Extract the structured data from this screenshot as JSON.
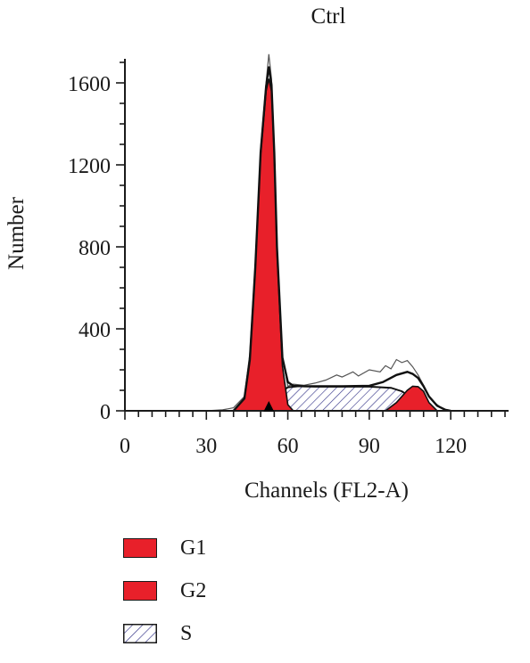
{
  "chart_data": {
    "type": "area",
    "title": "Ctrl",
    "xlabel": "Channels (FL2-A)",
    "ylabel": "Number",
    "xlim": [
      0,
      140
    ],
    "ylim": [
      0,
      1700
    ],
    "xticks": [
      0,
      30,
      60,
      90,
      120
    ],
    "yticks": [
      0,
      400,
      800,
      1200,
      1600
    ],
    "grid": false,
    "legend_position": "bottom-left",
    "marker_channel": 53,
    "colors": {
      "phase_fill": "#e8202a",
      "s_hatch": "#3a3a8c",
      "outline": "#111111",
      "raw": "#555555"
    },
    "series": [
      {
        "name": "G1",
        "style": "solid",
        "x": [
          40,
          44,
          46,
          48,
          50,
          52,
          53,
          54,
          55,
          56,
          58,
          60,
          62
        ],
        "y": [
          0,
          60,
          250,
          700,
          1250,
          1560,
          1620,
          1560,
          1250,
          780,
          220,
          30,
          0
        ]
      },
      {
        "name": "G2",
        "style": "solid",
        "x": [
          96,
          100,
          104,
          106,
          108,
          110,
          112,
          115
        ],
        "y": [
          0,
          40,
          100,
          120,
          118,
          95,
          40,
          0
        ]
      },
      {
        "name": "S",
        "style": "hatch",
        "x": [
          52,
          56,
          58,
          60,
          64,
          70,
          80,
          90,
          98,
          102,
          106,
          110,
          114
        ],
        "y": [
          0,
          60,
          95,
          115,
          120,
          118,
          118,
          118,
          112,
          95,
          60,
          20,
          0
        ]
      },
      {
        "name": "",
        "style": "raw",
        "x": [
          30,
          36,
          40,
          44,
          46,
          48,
          50,
          52,
          53,
          54,
          55,
          56,
          58,
          60,
          62,
          66,
          70,
          74,
          78,
          80,
          84,
          86,
          90,
          94,
          96,
          98,
          100,
          102,
          104,
          106,
          108,
          110,
          112,
          114,
          116,
          118,
          120
        ],
        "y": [
          0,
          5,
          15,
          70,
          280,
          720,
          1280,
          1600,
          1740,
          1620,
          1280,
          800,
          260,
          120,
          130,
          125,
          135,
          150,
          175,
          165,
          190,
          170,
          200,
          190,
          220,
          205,
          250,
          235,
          245,
          215,
          175,
          125,
          70,
          40,
          20,
          8,
          2
        ]
      },
      {
        "name": "",
        "style": "fit",
        "x": [
          40,
          44,
          46,
          48,
          50,
          52,
          53,
          54,
          55,
          56,
          58,
          60,
          62,
          66,
          70,
          80,
          90,
          95,
          100,
          104,
          106,
          108,
          110,
          112,
          115,
          118,
          120
        ],
        "y": [
          0,
          60,
          250,
          700,
          1260,
          1580,
          1680,
          1590,
          1260,
          800,
          260,
          140,
          122,
          120,
          120,
          120,
          122,
          140,
          175,
          190,
          180,
          160,
          120,
          70,
          25,
          5,
          0
        ]
      }
    ]
  },
  "legend": {
    "items": [
      {
        "label": "G1",
        "style": "solid"
      },
      {
        "label": "G2",
        "style": "solid"
      },
      {
        "label": "S",
        "style": "hatch"
      }
    ]
  }
}
